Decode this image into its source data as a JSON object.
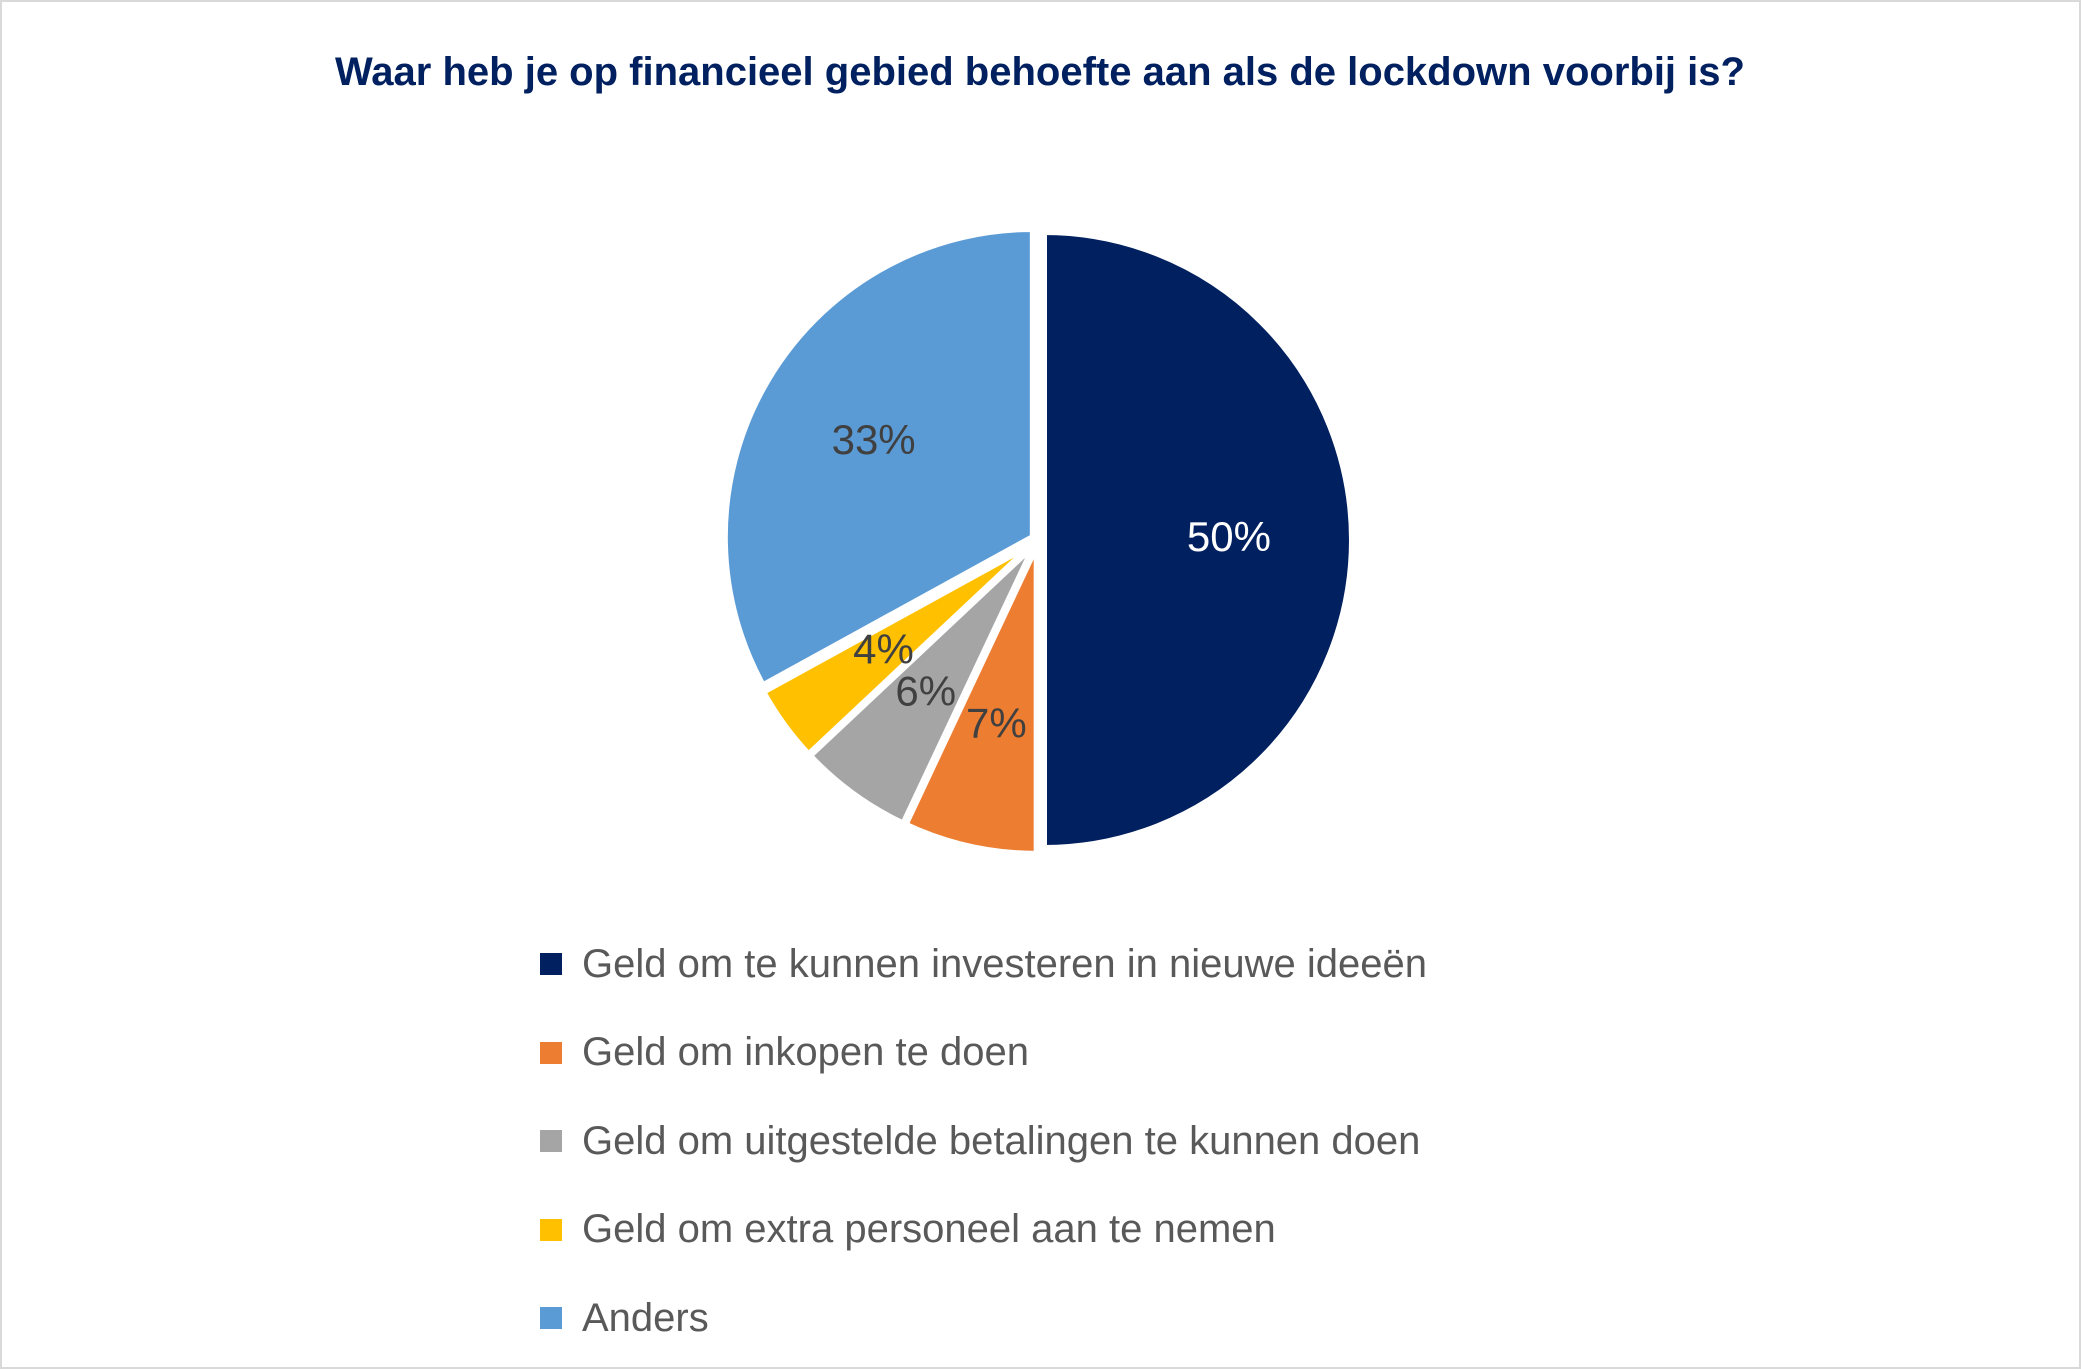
{
  "chart_data": {
    "type": "pie",
    "title": "Waar heb je op financieel gebied behoefte aan als de lockdown voorbij is?",
    "categories": [
      "Geld om te kunnen investeren in nieuwe ideeën",
      "Geld om inkopen te doen",
      "Geld om uitgestelde betalingen te kunnen doen",
      "Geld om extra personeel aan te nemen",
      "Anders"
    ],
    "values": [
      50,
      7,
      6,
      4,
      33
    ],
    "value_labels": [
      "50%",
      "7%",
      "6%",
      "4%",
      "33%"
    ],
    "colors": [
      "#002060",
      "#ED7D31",
      "#A5A5A5",
      "#FFC000",
      "#5B9BD5"
    ],
    "legend": "bottom"
  }
}
